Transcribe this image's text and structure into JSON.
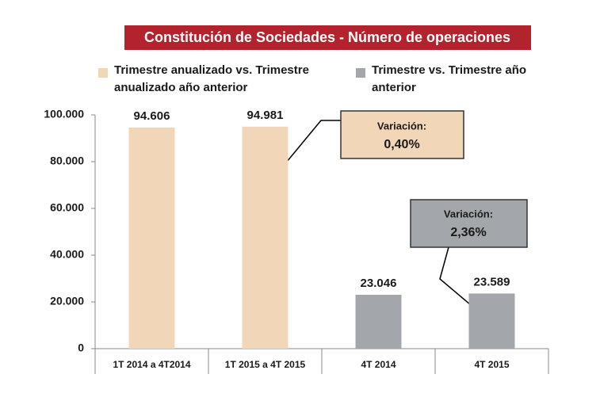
{
  "chart_data": {
    "type": "bar",
    "title": "Constitución de Sociedades - Número de operaciones",
    "categories": [
      "1T 2014 a 4T2014",
      "1T 2015 a 4T 2015",
      "4T 2014",
      "4T 2015"
    ],
    "series": [
      {
        "name": "Trimestre anualizado vs. Trimestre anualizado año anterior",
        "color": "#f2d6b8",
        "values": [
          94606,
          94981,
          null,
          null
        ],
        "value_labels": [
          "94.606",
          "94.981",
          null,
          null
        ]
      },
      {
        "name": "Trimestre vs. Trimestre año anterior",
        "color": "#a3a7ab",
        "values": [
          null,
          null,
          23046,
          23589
        ],
        "value_labels": [
          null,
          null,
          "23.046",
          "23.589"
        ]
      }
    ],
    "ylim": [
      0,
      100000
    ],
    "yticks": [
      0,
      {
        "value": 20000,
        "label": "20.000"
      },
      {
        "value": 40000,
        "label": "40.000"
      },
      {
        "value": 60000,
        "label": "60.000"
      },
      {
        "value": 80000,
        "label": "80.000"
      },
      {
        "value": 100000,
        "label": "100.000"
      }
    ],
    "grid": false,
    "annotations": [
      {
        "title": "Variación:",
        "text": "0,40%"
      },
      {
        "title": "Variación:",
        "text": "2,36%"
      }
    ]
  }
}
